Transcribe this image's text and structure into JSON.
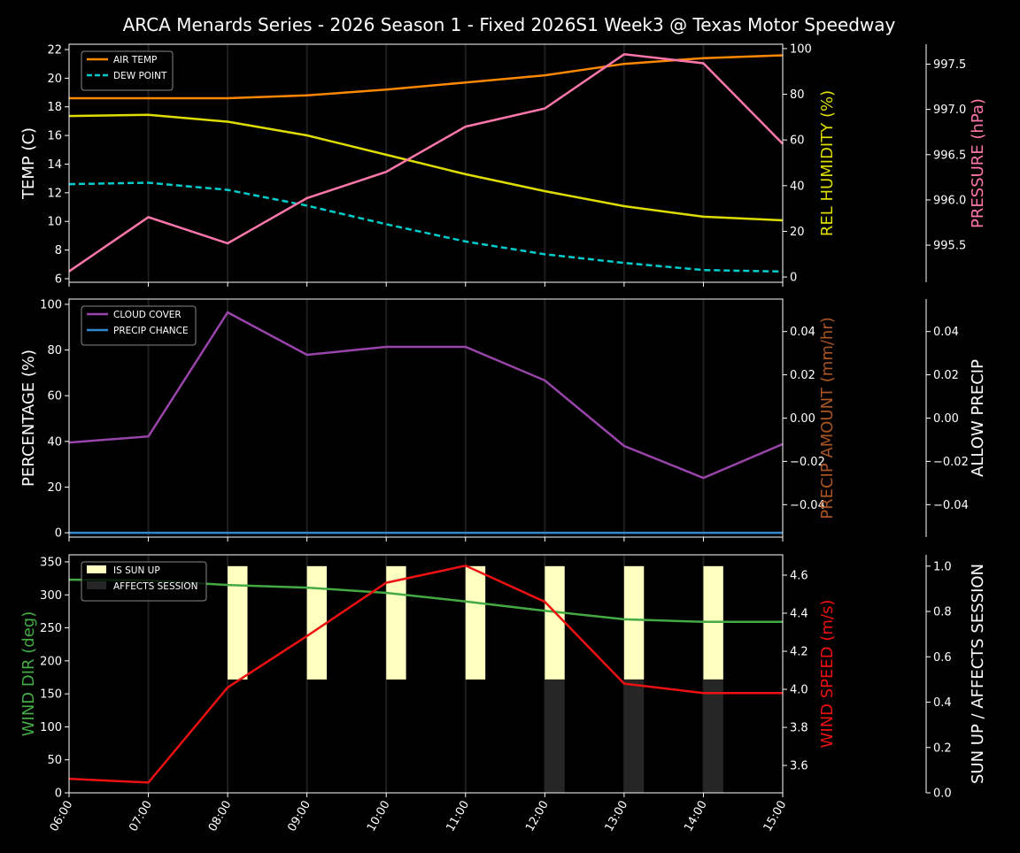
{
  "chart_data": [
    {
      "type": "line",
      "title": "ARCA Menards Series - 2026 Season 1 - Fixed 2026S1 Week3 @ Texas Motor Speedway",
      "x": [
        "06:00",
        "07:00",
        "08:00",
        "09:00",
        "10:00",
        "11:00",
        "12:00",
        "13:00",
        "14:00",
        "15:00"
      ],
      "axes": {
        "left": {
          "label": "TEMP (C)",
          "color": "#ffffff",
          "ylim": [
            5.75,
            22.37
          ],
          "ticks": [
            6,
            8,
            10,
            12,
            14,
            16,
            18,
            20,
            22
          ]
        },
        "right": {
          "label": "REL HUMIDITY (%)",
          "color": "#dddd00",
          "ylim": [
            -2.3,
            101.9
          ],
          "ticks": [
            0,
            20,
            40,
            60,
            80,
            100
          ]
        },
        "right2": {
          "label": "PRESSURE (hPa)",
          "color": "#ff77aa",
          "ylim": [
            995.09,
            997.72
          ],
          "ticks": [
            "995.5",
            "996.0",
            "996.5",
            "997.0",
            "997.5"
          ]
        }
      },
      "series": [
        {
          "name": "AIR TEMP",
          "axis": "left",
          "color": "#ff8800",
          "dash": false,
          "values": [
            18.6,
            18.6,
            18.6,
            18.8,
            19.2,
            19.7,
            20.2,
            21.0,
            21.4,
            21.6
          ]
        },
        {
          "name": "DEW POINT",
          "axis": "left",
          "color": "#00cccc",
          "dash": true,
          "values": [
            12.6,
            12.7,
            12.2,
            11.1,
            9.8,
            8.6,
            7.7,
            7.1,
            6.6,
            6.5
          ]
        },
        {
          "axis": "right",
          "color": "#dddd00",
          "dash": false,
          "values": [
            70.5,
            71,
            68,
            62,
            53.5,
            45,
            37.6,
            31,
            26.4,
            24.8
          ]
        },
        {
          "axis": "right2",
          "color": "#ff77aa",
          "dash": false,
          "values": [
            995.21,
            995.81,
            995.52,
            996.02,
            996.31,
            996.81,
            997.01,
            997.61,
            997.51,
            996.62
          ]
        }
      ],
      "legend": "top-left",
      "grid": "vertical"
    },
    {
      "type": "line",
      "x": [
        "06:00",
        "07:00",
        "08:00",
        "09:00",
        "10:00",
        "11:00",
        "12:00",
        "13:00",
        "14:00",
        "15:00"
      ],
      "axes": {
        "left": {
          "label": "PERCENTAGE (%)",
          "color": "#ffffff",
          "ylim": [
            -1.9,
            102.3
          ],
          "ticks": [
            0,
            20,
            40,
            60,
            80,
            100
          ]
        },
        "right": {
          "label": "PRECIP AMOUNT (mm/hr)",
          "color": "#aa5522",
          "ylim": [
            -0.055,
            0.055
          ],
          "ticks": [
            "−0.04",
            "−0.02",
            "0.00",
            "0.02",
            "0.04"
          ]
        },
        "right2": {
          "label": "ALLOW PRECIP",
          "color": "#ffffff",
          "ylim": [
            -0.055,
            0.055
          ],
          "ticks": [
            "−0.04",
            "−0.02",
            "0.00",
            "0.02",
            "0.04"
          ]
        }
      },
      "series": [
        {
          "name": "CLOUD COVER",
          "axis": "left",
          "color": "#9944aa",
          "dash": false,
          "values": [
            39.5,
            42.2,
            96.5,
            77.9,
            81.4,
            81.4,
            66.7,
            38,
            24,
            38.8
          ]
        },
        {
          "name": "PRECIP CHANCE",
          "axis": "left",
          "color": "#3388cc",
          "dash": false,
          "values": [
            0,
            0,
            0,
            0,
            0,
            0,
            0,
            0,
            0,
            0
          ]
        }
      ],
      "legend": "top-left",
      "grid": "vertical"
    },
    {
      "type": "line",
      "x": [
        "06:00",
        "07:00",
        "08:00",
        "09:00",
        "10:00",
        "11:00",
        "12:00",
        "13:00",
        "14:00",
        "15:00"
      ],
      "axes": {
        "left": {
          "label": "WIND DIR (deg)",
          "color": "#44aa44",
          "ylim": [
            0,
            360.7
          ],
          "ticks": [
            0,
            50,
            100,
            150,
            200,
            250,
            300,
            350
          ]
        },
        "right": {
          "label": "WIND SPEED (m/s)",
          "color": "#ee1111",
          "ylim": [
            3.456,
            4.707
          ],
          "ticks": [
            "3.6",
            "3.8",
            "4.0",
            "4.2",
            "4.4",
            "4.6"
          ]
        },
        "right2": {
          "label": "SUN UP / AFFECTS SESSION",
          "color": "#ffffff",
          "ylim": [
            0,
            1.05
          ],
          "ticks": [
            "0.0",
            "0.2",
            "0.4",
            "0.6",
            "0.8",
            "1.0"
          ]
        }
      },
      "series": [
        {
          "axis": "left",
          "color": "#44aa44",
          "dash": false,
          "values": [
            323,
            322,
            315,
            311,
            303,
            290,
            276,
            263,
            259,
            259
          ]
        },
        {
          "axis": "right",
          "color": "#ee1111",
          "dash": false,
          "values": [
            3.53,
            3.51,
            4.01,
            4.28,
            4.56,
            4.65,
            4.46,
            4.03,
            3.98,
            3.98
          ]
        }
      ],
      "bars": [
        {
          "name": "IS SUN UP",
          "color": "#ffffc0",
          "values": [
            0,
            0,
            1,
            1,
            1,
            1,
            1,
            1,
            1,
            0
          ]
        },
        {
          "name": "AFFECTS SESSION",
          "color": "#262626",
          "values": [
            0,
            0,
            0,
            0,
            0,
            0,
            1,
            1,
            1,
            0
          ]
        }
      ],
      "legend": "top-left",
      "grid": "vertical"
    }
  ]
}
